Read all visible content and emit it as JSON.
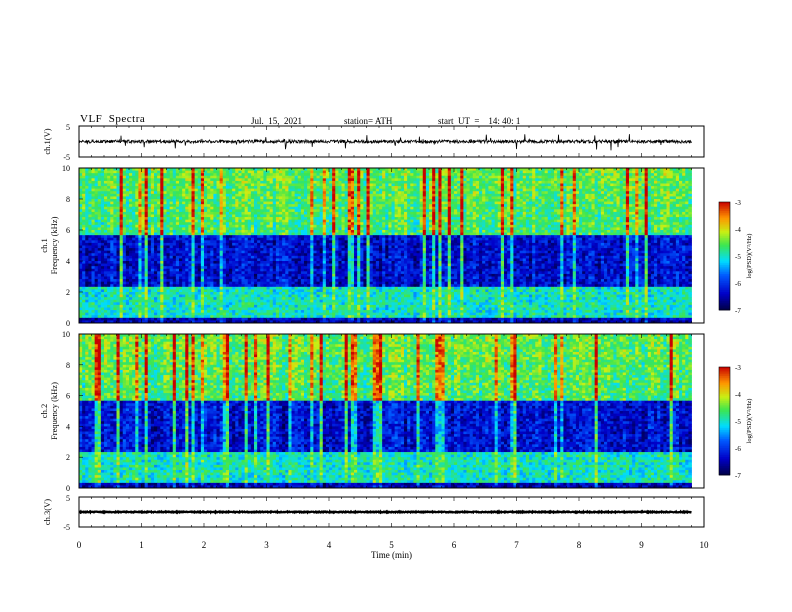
{
  "header": {
    "title": "VLF  Spectra",
    "date": "Jul.  15,  2021",
    "station": "station= ATH",
    "start_ut": "start  UT  =    14: 40: 1"
  },
  "chart_data": [
    {
      "type": "line",
      "panel": "ch1-waveform",
      "ylabel": "ch.1(V)",
      "ylim": [
        -5,
        5
      ],
      "yticks": [
        "5",
        "-5"
      ],
      "xlim": [
        0,
        10
      ],
      "series": [
        {
          "color": "#000000",
          "baseline": 0,
          "typical_amplitude": 0.5,
          "spike_amplitude": 2.5,
          "x_end": 9.8
        }
      ]
    },
    {
      "type": "heatmap",
      "panel": "ch1-spectrogram",
      "ylabel_channel": "ch.1",
      "ylabel": "Frequency  (kHz)",
      "ylim": [
        0,
        10
      ],
      "yticks": [
        "0",
        "2",
        "4",
        "6",
        "8",
        "10"
      ],
      "xlim": [
        0,
        9.8
      ],
      "low_power_band_khz": [
        2.4,
        5.6
      ],
      "colorbar": {
        "label": "log(PSD)(V²/Hz)",
        "range": [
          -7,
          -3
        ],
        "ticks": [
          "-3",
          "-4",
          "-5",
          "-6",
          "-7"
        ]
      }
    },
    {
      "type": "heatmap",
      "panel": "ch2-spectrogram",
      "ylabel_channel": "ch.2",
      "ylabel": "Frequency  (kHz)",
      "ylim": [
        0,
        10
      ],
      "yticks": [
        "0",
        "2",
        "4",
        "6",
        "8",
        "10"
      ],
      "xlim": [
        0,
        9.8
      ],
      "low_power_band_khz": [
        2.4,
        5.6
      ],
      "colorbar": {
        "label": "log(PSD)(V²/Hz)",
        "range": [
          -7,
          -3
        ],
        "ticks": [
          "-3",
          "-4",
          "-5",
          "-6",
          "-7"
        ]
      }
    },
    {
      "type": "line",
      "panel": "ch3-waveform",
      "ylabel": "ch.3(V)",
      "ylim": [
        -5,
        5
      ],
      "yticks": [
        "5",
        "-5"
      ],
      "xlim": [
        0,
        10
      ],
      "series": [
        {
          "color": "#000000",
          "baseline": 0,
          "typical_amplitude": 0.15,
          "x_end": 9.8
        }
      ]
    }
  ],
  "xaxis": {
    "label": "Time  (min)",
    "ticks": [
      "0",
      "1",
      "2",
      "3",
      "4",
      "5",
      "6",
      "7",
      "8",
      "9",
      "10"
    ]
  },
  "colors": {
    "frame": "#000000",
    "background": "#ffffff"
  }
}
